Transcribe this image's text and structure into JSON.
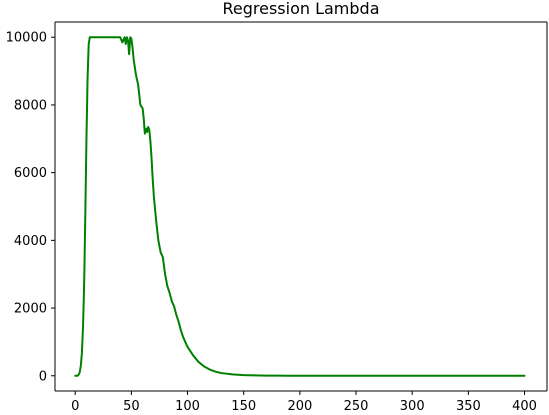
{
  "chart_data": {
    "type": "line",
    "title": "Regression Lambda",
    "xlabel": "",
    "ylabel": "",
    "xlim": [
      -18,
      420
    ],
    "ylim": [
      -450,
      10450
    ],
    "grid": false,
    "legend": "none",
    "xticks": [
      0,
      50,
      100,
      150,
      200,
      250,
      300,
      350,
      400
    ],
    "yticks": [
      0,
      2000,
      4000,
      6000,
      8000,
      10000
    ],
    "series": [
      {
        "color": "#008000",
        "x": [
          0,
          2,
          3,
          4,
          5,
          6,
          7,
          8,
          9,
          10,
          11,
          12,
          13,
          15,
          20,
          25,
          30,
          35,
          40,
          42,
          44,
          45,
          46,
          47,
          48,
          49,
          50,
          51,
          52,
          54,
          56,
          58,
          60,
          61,
          62,
          63,
          64,
          65,
          66,
          67,
          68,
          69,
          70,
          72,
          74,
          76,
          78,
          80,
          82,
          84,
          86,
          88,
          90,
          92,
          94,
          96,
          98,
          100,
          105,
          110,
          115,
          120,
          125,
          130,
          140,
          150,
          160,
          170,
          180,
          190,
          200,
          220,
          250,
          300,
          350,
          400
        ],
        "y": [
          0,
          0,
          30,
          100,
          300,
          700,
          1500,
          2800,
          4800,
          7000,
          8800,
          9800,
          10000,
          10000,
          10000,
          10000,
          10000,
          10000,
          10000,
          9850,
          10000,
          9800,
          10000,
          9900,
          9500,
          10000,
          9950,
          9700,
          9350,
          8900,
          8600,
          8000,
          7900,
          7600,
          7150,
          7300,
          7200,
          7350,
          7250,
          6900,
          6400,
          5800,
          5300,
          4600,
          4000,
          3650,
          3500,
          3000,
          2650,
          2450,
          2200,
          2050,
          1800,
          1600,
          1350,
          1150,
          1000,
          850,
          600,
          400,
          270,
          180,
          120,
          80,
          40,
          20,
          10,
          5,
          3,
          2,
          1,
          0,
          0,
          0,
          0,
          0
        ]
      }
    ]
  }
}
